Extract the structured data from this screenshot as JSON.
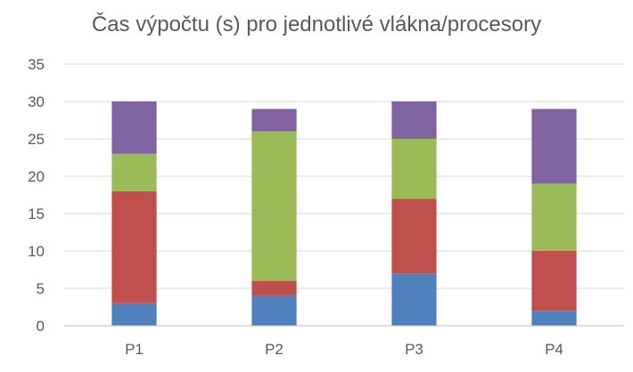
{
  "chart_data": {
    "type": "bar",
    "stacked": true,
    "title": "Čas výpočtu (s) pro jednotlivé vlákna/procesory",
    "xlabel": "",
    "ylabel": "",
    "categories": [
      "P1",
      "P2",
      "P3",
      "P4"
    ],
    "ylim": [
      0,
      35
    ],
    "yticks": [
      0,
      5,
      10,
      15,
      20,
      25,
      30,
      35
    ],
    "grid": true,
    "legend": "none",
    "series": [
      {
        "values": [
          3,
          4,
          7,
          2
        ],
        "color": "#4f81bd"
      },
      {
        "values": [
          15,
          2,
          10,
          8
        ],
        "color": "#c0504d"
      },
      {
        "values": [
          5,
          20,
          8,
          9
        ],
        "color": "#9bbb59"
      },
      {
        "values": [
          7,
          3,
          5,
          10
        ],
        "color": "#8064a2"
      }
    ]
  }
}
